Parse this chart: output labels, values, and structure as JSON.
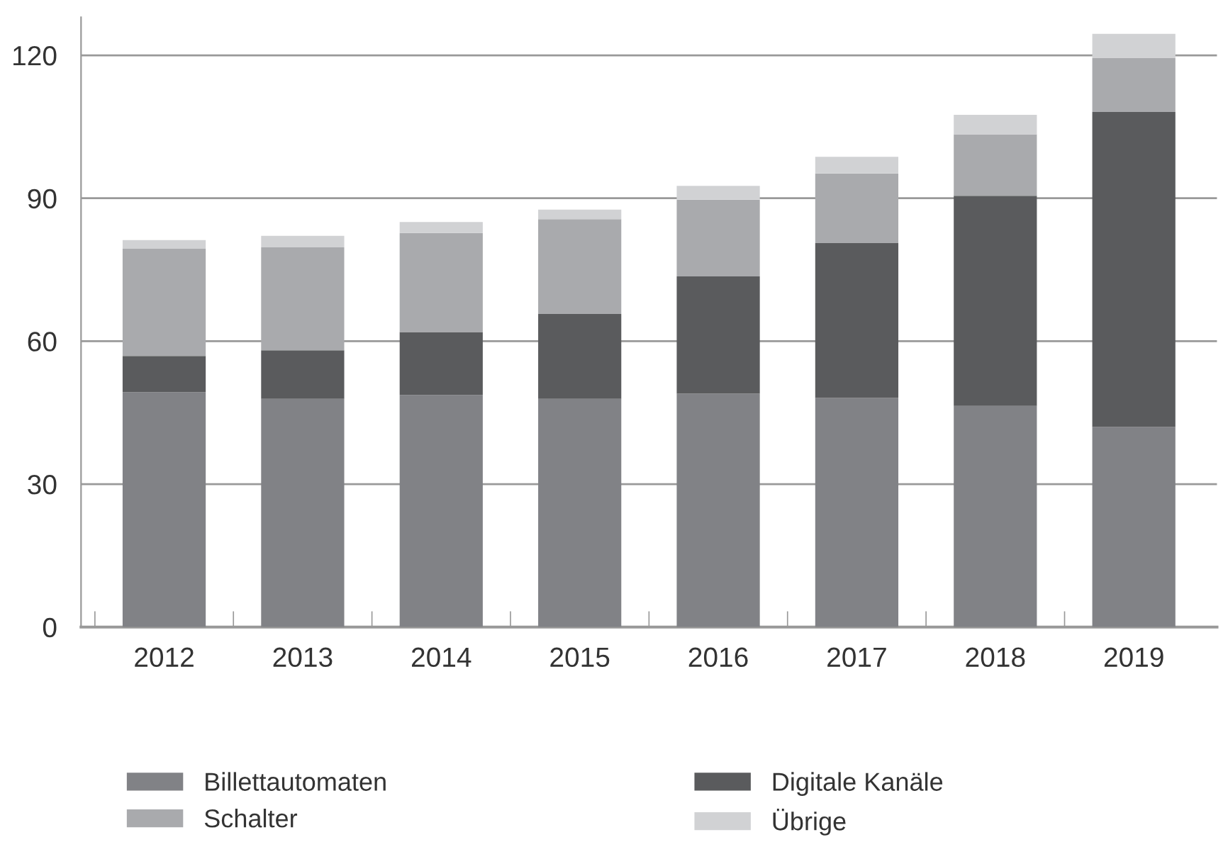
{
  "chart_data": {
    "type": "bar",
    "stacked": true,
    "categories": [
      "2012",
      "2013",
      "2014",
      "2015",
      "2016",
      "2017",
      "2018",
      "2019"
    ],
    "series": [
      {
        "name": "Billettautomaten",
        "color": "#818286",
        "values": [
          49.3,
          47.9,
          48.7,
          47.9,
          49.0,
          48.1,
          46.4,
          42.0
        ]
      },
      {
        "name": "Digitale Kanäle",
        "color": "#5a5b5d",
        "values": [
          7.6,
          10.2,
          13.2,
          17.8,
          24.6,
          32.5,
          44.1,
          66.1
        ]
      },
      {
        "name": "Schalter",
        "color": "#a9aaad",
        "values": [
          22.5,
          21.6,
          20.8,
          19.9,
          16.1,
          14.6,
          12.9,
          11.4
        ]
      },
      {
        "name": "Übrige",
        "color": "#d1d2d4",
        "values": [
          1.8,
          2.4,
          2.3,
          2.0,
          2.9,
          3.5,
          4.1,
          5.0
        ]
      }
    ],
    "ylim": [
      0,
      128
    ],
    "yticks": [
      0,
      30,
      60,
      90,
      120
    ],
    "grid": "y",
    "legend": "bottom"
  }
}
